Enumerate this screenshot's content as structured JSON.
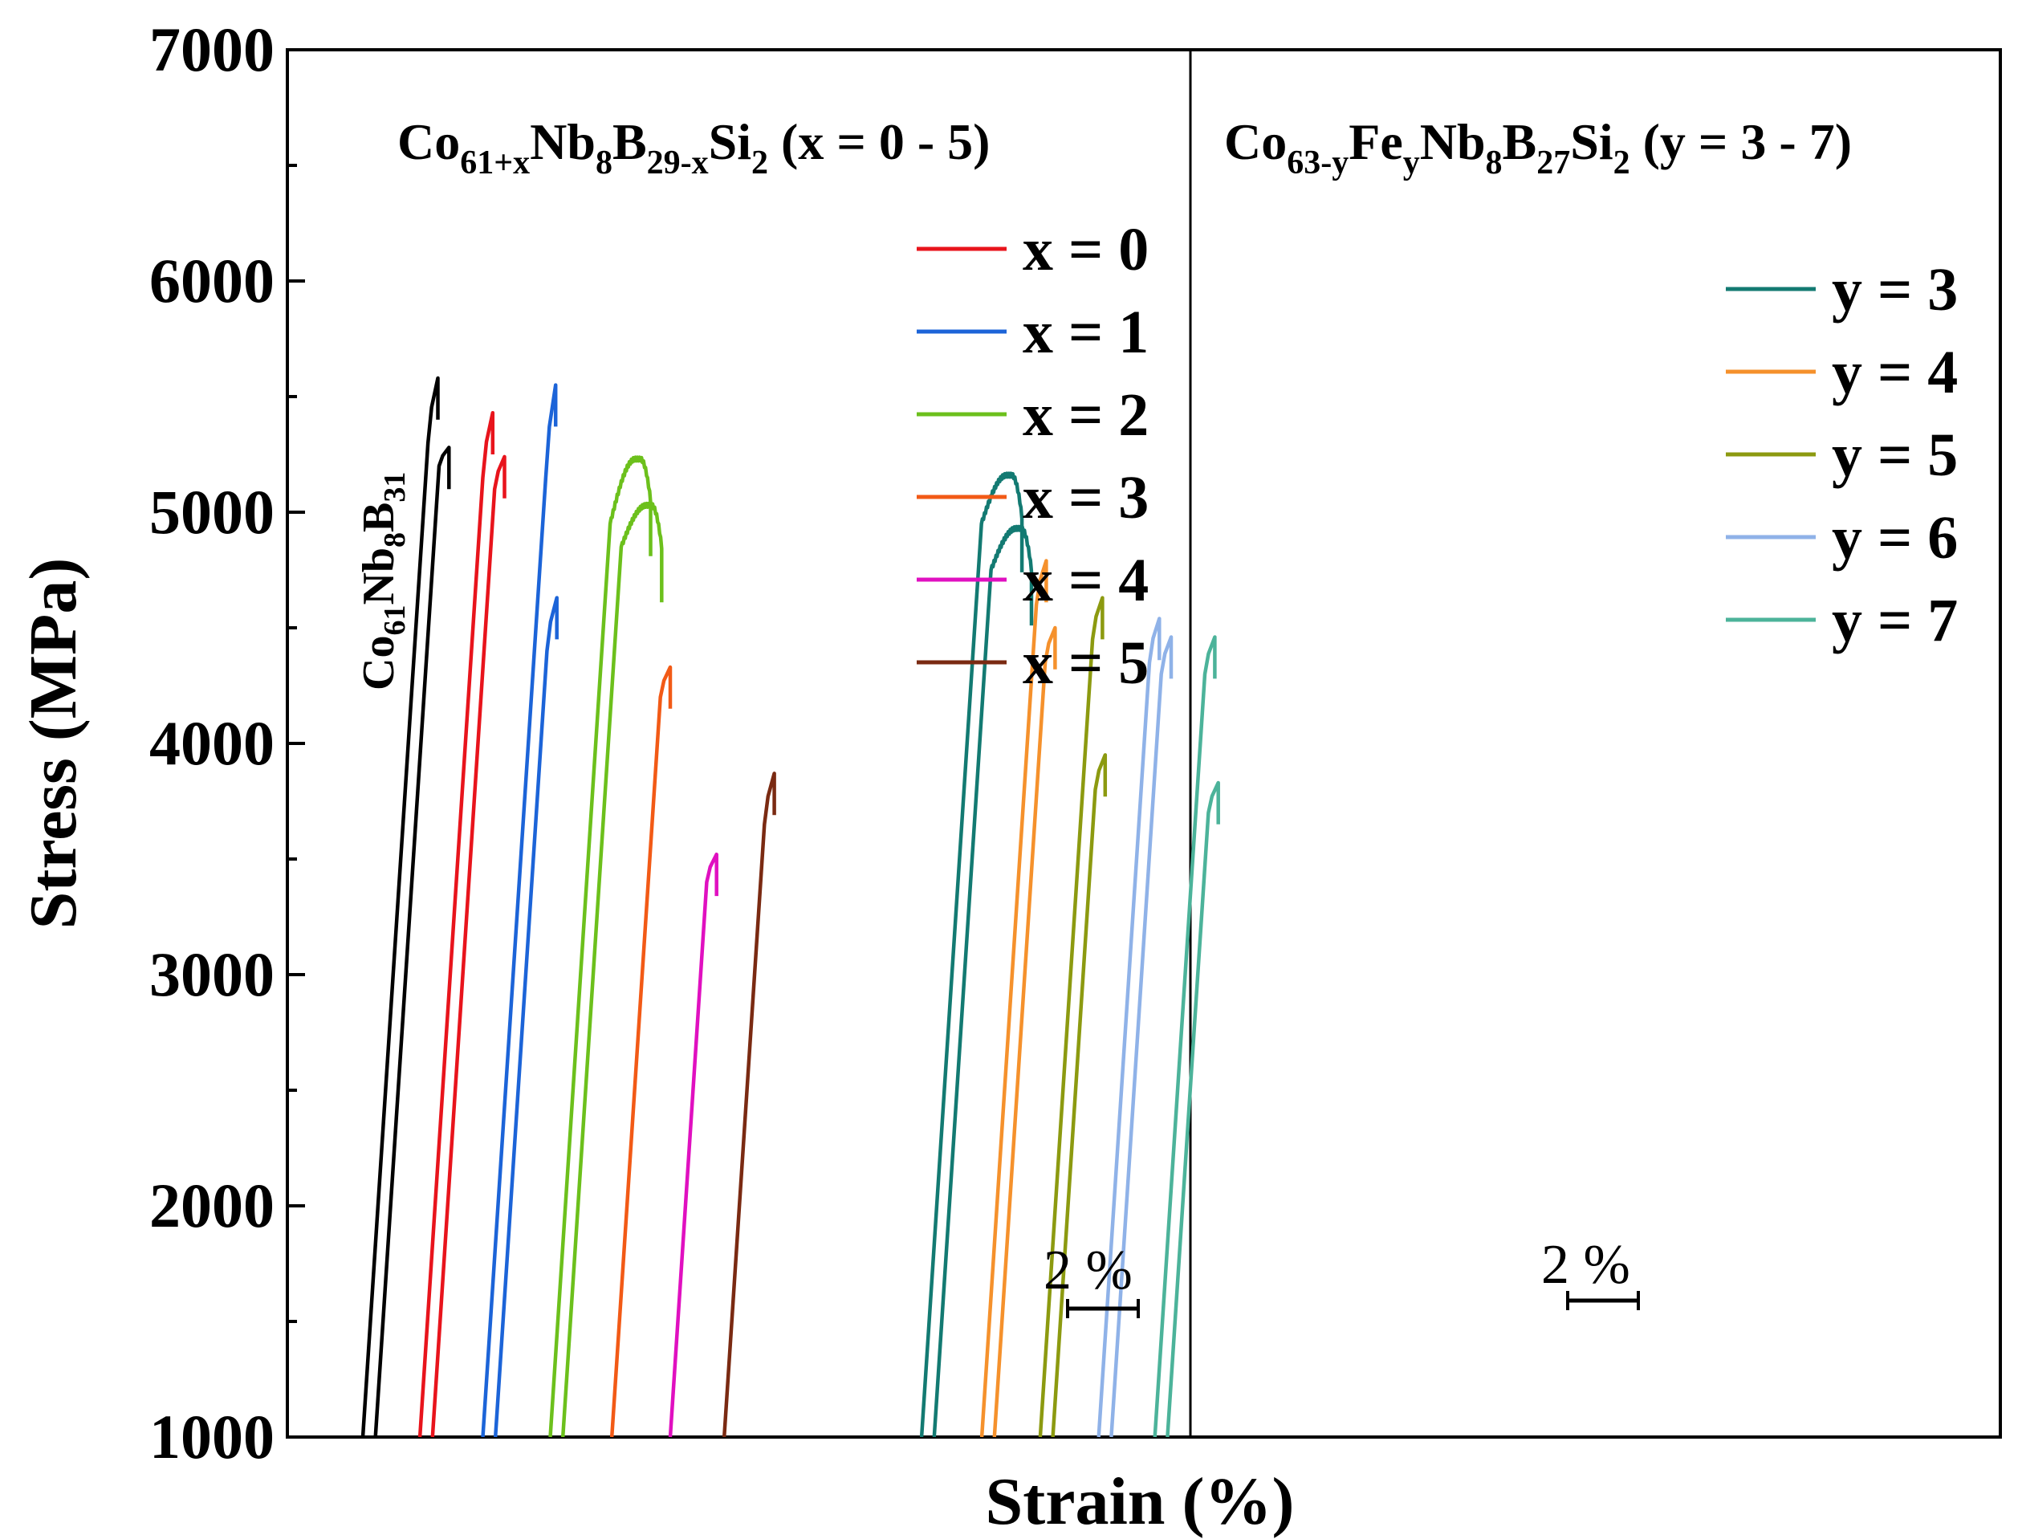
{
  "chart_data": {
    "type": "line",
    "ylabel": "Stress (MPa)",
    "xlabel": "Strain (%)",
    "ylim": [
      1000,
      7000
    ],
    "yticks": [
      1000,
      2000,
      3000,
      4000,
      5000,
      6000,
      7000
    ],
    "xticks_shown": false,
    "scale_bar": "2 %",
    "annotation": {
      "base": "Co",
      "sub1": "61",
      "mid1": "Nb",
      "sub2": "8",
      "mid2": "B",
      "sub3": "31"
    },
    "panels": [
      {
        "title_parts": {
          "a": "Co",
          "sa": "61+x",
          "b": "Nb",
          "sb": "8",
          "c": "B",
          "sc": "29-x",
          "d": "Si",
          "sd": "2",
          "e": " (x = 0 - 5)"
        },
        "legend": [
          {
            "label": "x = 0",
            "color": "#e8141c"
          },
          {
            "label": "x = 1",
            "color": "#1c64d8"
          },
          {
            "label": "x = 2",
            "color": "#6cc01c"
          },
          {
            "label": "x = 3",
            "color": "#f25a16"
          },
          {
            "label": "x = 4",
            "color": "#e010c0"
          },
          {
            "label": "x = 5",
            "color": "#7a2a12"
          }
        ],
        "series": [
          {
            "name": "Co61Nb8B31",
            "color": "#000000",
            "offset": 0.0,
            "curves": [
              {
                "peak": 5580,
                "yield": 5300,
                "plastic": 0
              },
              {
                "peak": 5280,
                "yield": 5200,
                "plastic": 0
              }
            ]
          },
          {
            "name": "x = 0",
            "color": "#e8141c",
            "offset": 1.27,
            "curves": [
              {
                "peak": 5430,
                "yield": 5150,
                "plastic": 0
              },
              {
                "peak": 5240,
                "yield": 5100,
                "plastic": 0
              }
            ]
          },
          {
            "name": "x = 1",
            "color": "#1c64d8",
            "offset": 2.67,
            "curves": [
              {
                "peak": 5550,
                "yield": 5150,
                "plastic": 0
              },
              {
                "peak": 4630,
                "yield": 4400,
                "plastic": 0
              }
            ]
          },
          {
            "name": "x = 2",
            "color": "#6cc01c",
            "offset": 4.17,
            "curves": [
              {
                "peak": 5230,
                "yield": 4950,
                "plastic": 1
              },
              {
                "peak": 5030,
                "yield": 4850,
                "plastic": 1
              }
            ]
          },
          {
            "name": "x = 3",
            "color": "#f25a16",
            "offset": 5.54,
            "curves": [
              {
                "peak": 4330,
                "yield": 4200,
                "plastic": 0
              }
            ]
          },
          {
            "name": "x = 4",
            "color": "#e010c0",
            "offset": 6.84,
            "curves": [
              {
                "peak": 3520,
                "yield": 3400,
                "plastic": 0
              }
            ]
          },
          {
            "name": "x = 5",
            "color": "#7a2a12",
            "offset": 8.04,
            "curves": [
              {
                "peak": 3870,
                "yield": 3650,
                "plastic": 0
              }
            ]
          }
        ]
      },
      {
        "title_parts": {
          "a": "Co",
          "sa": "63-y",
          "b": "Fe",
          "sb": "y",
          "c": "Nb",
          "sc": "8",
          "d": "B",
          "sd": "27",
          "e": "Si",
          "se": "2",
          "f": " (y = 3 - 7)"
        },
        "legend": [
          {
            "label": "y = 3",
            "color": "#137a72"
          },
          {
            "label": "y = 4",
            "color": "#f5912c"
          },
          {
            "label": "y = 5",
            "color": "#8c9a10"
          },
          {
            "label": "y = 6",
            "color": "#8fb2e8"
          },
          {
            "label": "y = 7",
            "color": "#4cb39a"
          }
        ],
        "series": [
          {
            "name": "y = 3",
            "color": "#137a72",
            "offset": 12.43,
            "curves": [
              {
                "peak": 5160,
                "yield": 4950,
                "plastic": 1
              },
              {
                "peak": 4930,
                "yield": 4750,
                "plastic": 1
              }
            ]
          },
          {
            "name": "y = 4",
            "color": "#f5912c",
            "offset": 13.77,
            "curves": [
              {
                "peak": 4790,
                "yield": 4600,
                "plastic": 0
              },
              {
                "peak": 4500,
                "yield": 4350,
                "plastic": 0
              }
            ]
          },
          {
            "name": "y = 5",
            "color": "#8c9a10",
            "offset": 15.07,
            "curves": [
              {
                "peak": 4630,
                "yield": 4450,
                "plastic": 0
              },
              {
                "peak": 3950,
                "yield": 3800,
                "plastic": 0
              }
            ]
          },
          {
            "name": "y = 6",
            "color": "#8fb2e8",
            "offset": 16.37,
            "curves": [
              {
                "peak": 4540,
                "yield": 4350,
                "plastic": 0
              },
              {
                "peak": 4460,
                "yield": 4300,
                "plastic": 0
              }
            ]
          },
          {
            "name": "y = 7",
            "color": "#4cb39a",
            "offset": 17.62,
            "curves": [
              {
                "peak": 4460,
                "yield": 4300,
                "plastic": 0
              },
              {
                "peak": 3830,
                "yield": 3700,
                "plastic": 0
              }
            ]
          }
        ]
      }
    ]
  }
}
